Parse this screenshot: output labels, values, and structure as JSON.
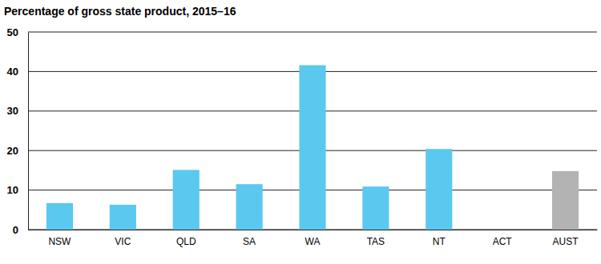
{
  "chart_data": {
    "type": "bar",
    "title": "Percentage of gross state product, 2015–16",
    "categories": [
      "NSW",
      "VIC",
      "QLD",
      "SA",
      "WA",
      "TAS",
      "NT",
      "ACT",
      "AUST"
    ],
    "values": [
      6.7,
      6.3,
      15.1,
      11.5,
      41.6,
      10.9,
      20.4,
      0,
      14.8
    ],
    "colors": [
      "#5bc8ef",
      "#5bc8ef",
      "#5bc8ef",
      "#5bc8ef",
      "#5bc8ef",
      "#5bc8ef",
      "#5bc8ef",
      "#5bc8ef",
      "#b3b3b3"
    ],
    "ylim": [
      0,
      50
    ],
    "yticks": [
      0,
      10,
      20,
      30,
      40,
      50
    ],
    "grid": true
  }
}
